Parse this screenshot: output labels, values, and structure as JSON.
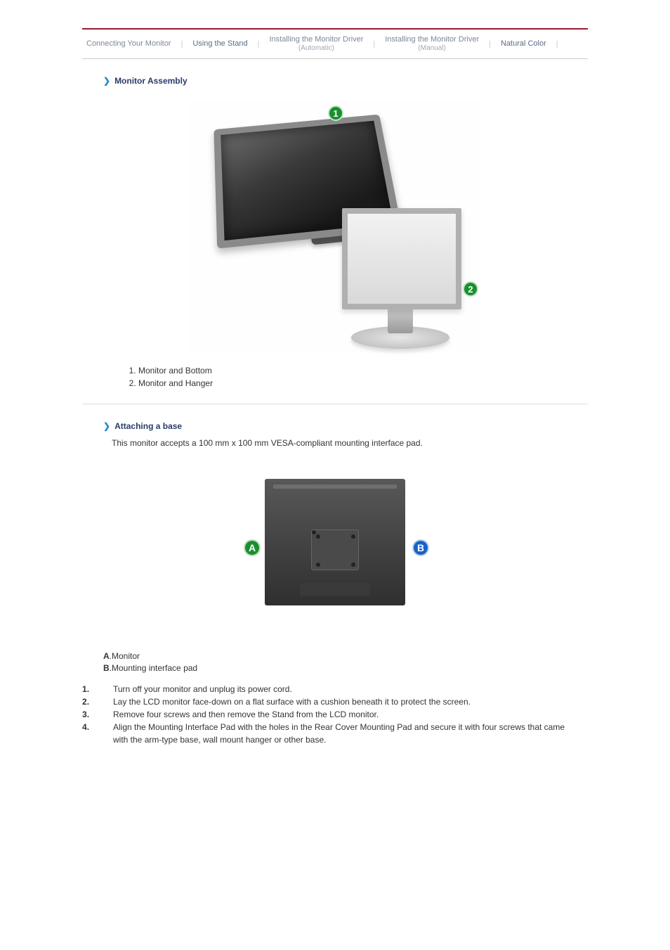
{
  "tabs": {
    "t0": "Connecting Your Monitor",
    "t1": "Using the Stand",
    "t2": "Installing the Monitor Driver",
    "t2sub": "(Automatic)",
    "t3": "Installing the Monitor Driver",
    "t3sub": "(Manual)",
    "t4": "Natural Color"
  },
  "section1": {
    "title": "Monitor Assembly",
    "callout1": "1",
    "callout2": "2",
    "items": [
      "Monitor and Bottom",
      "Monitor and Hanger"
    ]
  },
  "section2": {
    "title": "Attaching a base",
    "intro": "This monitor accepts a 100 mm x 100 mm VESA-compliant mounting interface pad.",
    "labelA": "A",
    "labelB": "B",
    "labelA_text": ".Monitor",
    "labelB_text": ".Mounting interface pad",
    "steps": [
      {
        "num": "1",
        "txt": "Turn off your monitor and unplug its power cord."
      },
      {
        "num": "2",
        "txt": "Lay the LCD monitor face-down on a flat surface with a cushion beneath it to protect the screen."
      },
      {
        "num": "3",
        "txt": "Remove four screws and then remove the Stand from the LCD monitor."
      },
      {
        "num": "4",
        "txt": "Align the Mounting Interface Pad with the holes in the Rear Cover Mounting Pad and secure it with four screws that came with the arm-type base, wall mount hanger or other base."
      }
    ]
  },
  "colors": {
    "accent": "#2a3b6b",
    "green": "#1a8f2e",
    "blue": "#1862c6",
    "topbar": "#9a1a2e"
  }
}
